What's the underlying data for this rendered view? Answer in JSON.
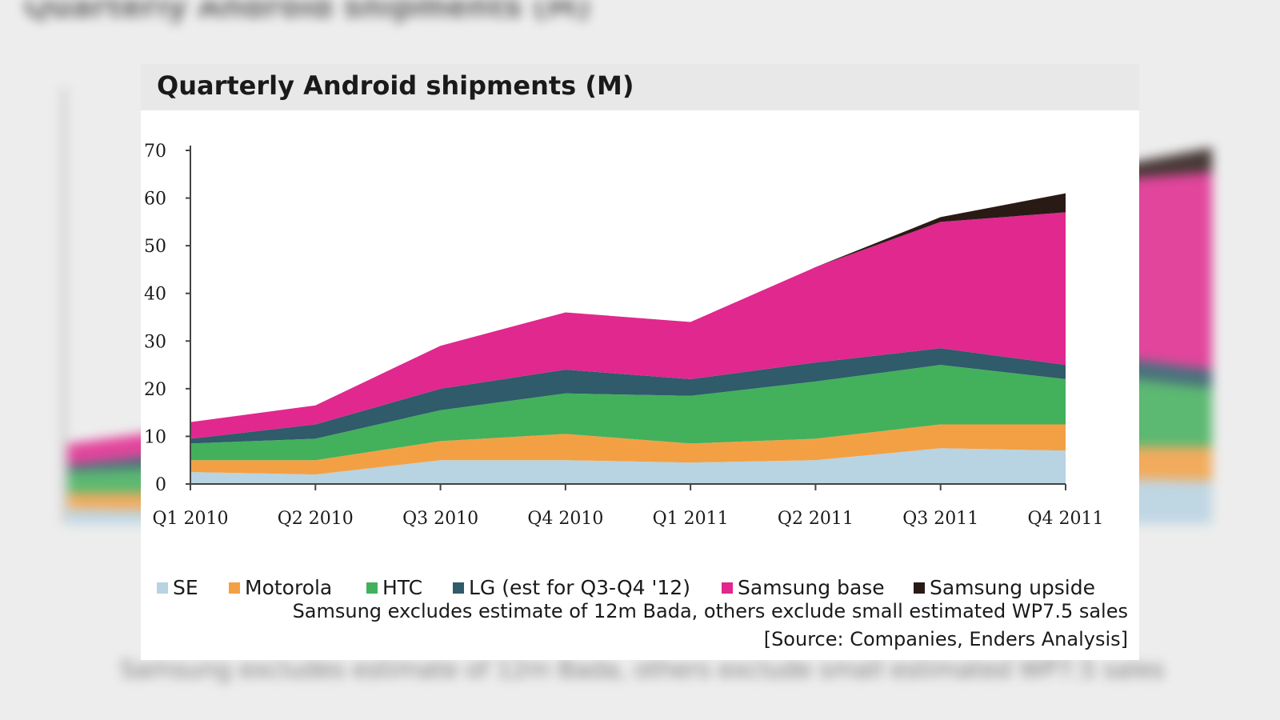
{
  "chart_data": {
    "type": "area",
    "title": "Quarterly Android shipments (M)",
    "categories": [
      "Q1 2010",
      "Q2 2010",
      "Q3 2010",
      "Q4 2010",
      "Q1 2011",
      "Q2 2011",
      "Q3 2011",
      "Q4 2011"
    ],
    "ylim": [
      0,
      70
    ],
    "yticks": [
      "0",
      "10",
      "20",
      "30",
      "40",
      "50",
      "60",
      "70"
    ],
    "stacked": true,
    "series": [
      {
        "name": "SE",
        "color": "#b8d3e2",
        "values": [
          2.5,
          2,
          5,
          5,
          4.5,
          5,
          7.5,
          7
        ]
      },
      {
        "name": "Motorola",
        "color": "#f3a044",
        "values": [
          2.5,
          3,
          4,
          5.5,
          4,
          4.5,
          5,
          5.5
        ]
      },
      {
        "name": "HTC",
        "color": "#43b05c",
        "values": [
          3.5,
          4.5,
          6.5,
          8.5,
          10,
          12,
          12.5,
          9.5
        ]
      },
      {
        "name": "LG (est for Q3-Q4 '12)",
        "color": "#2f5b6a",
        "values": [
          1,
          3,
          4.5,
          5,
          3.5,
          4,
          3.5,
          3
        ]
      },
      {
        "name": "Samsung base",
        "color": "#e0288e",
        "values": [
          3.5,
          4,
          9,
          12,
          12,
          20,
          26.5,
          32
        ]
      },
      {
        "name": "Samsung upside",
        "color": "#2a1a16",
        "values": [
          0,
          0,
          0,
          0,
          0,
          0,
          1,
          4
        ]
      }
    ]
  },
  "legend_items": [
    "SE",
    "Motorola",
    "HTC",
    "LG (est for Q3-Q4 '12)",
    "Samsung base",
    "Samsung upside"
  ],
  "note": "Samsung excludes estimate of 12m Bada, others exclude small estimated  WP7.5 sales",
  "source": "[Source: Companies, Enders Analysis]"
}
